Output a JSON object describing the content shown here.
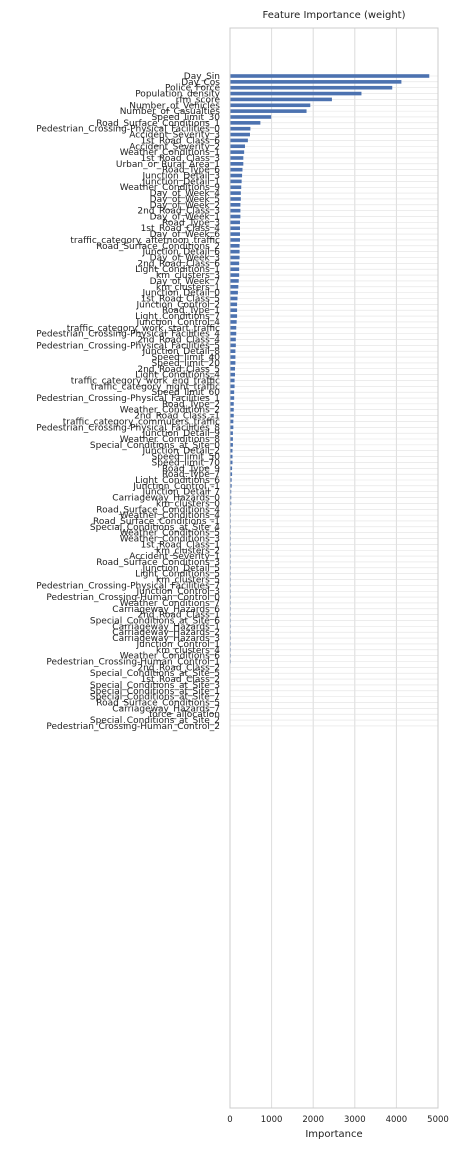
{
  "chart_data": {
    "type": "bar",
    "orientation": "horizontal",
    "title": "Feature Importance (weight)",
    "xlabel": "Importance",
    "ylabel": "",
    "xlim": [
      0,
      5000
    ],
    "xticks": [
      "0",
      "1000",
      "2000",
      "3000",
      "4000",
      "5000"
    ],
    "grid": true,
    "legend": "none",
    "bar_color": "#4c72b0",
    "categories": [
      "Day_Sin",
      "Day_Cos",
      "Police_Force",
      "Population_density",
      "rfm_score",
      "Number_of_Vehicles",
      "Number_of_Casualties",
      "Speed_limit_30",
      "Road_Surface_Conditions_1",
      "Pedestrian_Crossing-Physical_Facilities_0",
      "Accident_Severity_3",
      "1st_Road_Class_6",
      "Accident_Severity_2",
      "Weather_Conditions_1",
      "1st_Road_Class_3",
      "Urban_or_Rural_Area_1",
      "Road_Type_6",
      "Junction_Detail_3",
      "Junction_Detail_1",
      "Weather_Conditions_9",
      "Day_of_Week_4",
      "Day_of_Week_5",
      "Day_of_Week_2",
      "2nd_Road_Class_3",
      "Day_of_Week_1",
      "Road_Type_3",
      "1st_Road_Class_4",
      "Day_of_Week_6",
      "traffic_category_afternoon_traffic",
      "Road_Surface_Conditions_2",
      "Junction_Detail_6",
      "Day_of_Week_3",
      "2nd_Road_Class_6",
      "Light_Conditions_1",
      "km_clusters_3",
      "Day_of_Week_7",
      "km_clusters_1",
      "Junction_Detail_0",
      "1st_Road_Class_5",
      "Junction_Control_2",
      "Road_Type_1",
      "Light_Conditions_7",
      "Junction_Control_4",
      "traffic_category_work_start_traffic",
      "Pedestrian_Crossing-Physical_Facilities_4",
      "2nd_Road_Class_4",
      "Pedestrian_Crossing-Physical_Facilities_5",
      "Junction_Detail_8",
      "Speed_limit_40",
      "Speed_limit_20",
      "2nd_Road_Class_5",
      "Light_Conditions_4",
      "traffic_category_work_end_traffic",
      "traffic_category_night_traffic",
      "Speed_limit_60",
      "Pedestrian_Crossing-Physical_Facilities_1",
      "Road_Type_2",
      "Weather_Conditions_2",
      "2nd_Road_Class_-1",
      "traffic_category_commuters_traffic",
      "Pedestrian_Crossing-Physical_Facilities_8",
      "Junction_Detail_9",
      "Weather_Conditions_8",
      "Special_Conditions_at_Site_0",
      "Junction_Detail_2",
      "Speed_limit_50",
      "Speed_limit_70",
      "Road_Type_9",
      "Road_Type_7",
      "Light_Conditions_6",
      "Junction_Control_-1",
      "Junction_Detail_7",
      "Carriageway_Hazards_0",
      "km_clusters_0",
      "Road_Surface_Conditions_4",
      "Weather_Conditions_4",
      "Road_Surface_Conditions_-1",
      "Special_Conditions_at_Site_4",
      "Weather_Conditions_5",
      "Weather_Conditions_3",
      "1st_Road_Class_1",
      "km_clusters_2",
      "Accident_Severity_1",
      "Road_Surface_Conditions_3",
      "Junction_Detail_5",
      "Light_Conditions_5",
      "km_clusters_5",
      "Pedestrian_Crossing-Physical_Facilities_7",
      "Junction_Control_3",
      "Pedestrian_Crossing-Human_Control_0",
      "Weather_Conditions_7",
      "Carriageway_Hazards_6",
      "2nd_Road_Class_1",
      "Special_Conditions_at_Site_6",
      "Carriageway_Hazards_1",
      "Carriageway_Hazards_2",
      "Carriageway_Hazards_3",
      "Junction_Control_1",
      "km_clusters_4",
      "Weather_Conditions_6",
      "Pedestrian_Crossing-Human_Control_1",
      "2nd_Road_Class_2",
      "Special_Conditions_at_Site_5",
      "1st_Road_Class_2",
      "Special_Conditions_at_Site_3",
      "Special_Conditions_at_Site_1",
      "Special_Conditions_at_Site_7",
      "Road_Surface_Conditions_5",
      "Carriageway_Hazards_7",
      "force_allocation",
      "Special_Conditions_at_Site_2",
      "Pedestrian_Crossing-Human_Control_2"
    ],
    "values": [
      4790,
      4120,
      3900,
      3160,
      2450,
      1930,
      1840,
      990,
      730,
      490,
      480,
      430,
      360,
      340,
      320,
      320,
      300,
      290,
      280,
      270,
      260,
      260,
      250,
      250,
      250,
      240,
      240,
      240,
      240,
      230,
      230,
      230,
      220,
      220,
      220,
      210,
      200,
      190,
      180,
      170,
      170,
      170,
      160,
      150,
      150,
      140,
      140,
      130,
      130,
      130,
      120,
      120,
      110,
      110,
      100,
      100,
      90,
      90,
      90,
      80,
      80,
      70,
      70,
      70,
      60,
      60,
      60,
      50,
      50,
      40,
      40,
      30,
      30,
      30,
      20,
      20,
      20,
      20,
      20,
      20,
      20,
      20,
      10,
      10,
      10,
      10,
      10,
      10,
      10,
      10,
      5,
      5,
      5,
      5,
      5,
      5,
      5,
      5,
      5,
      5,
      5,
      0,
      0,
      0,
      0,
      0,
      0,
      0,
      0,
      0,
      0,
      0
    ]
  }
}
